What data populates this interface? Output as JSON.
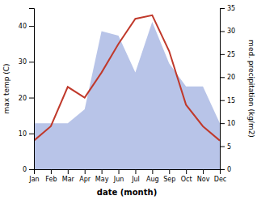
{
  "chart_data": {
    "type": "line",
    "xlabel": "date (month)",
    "ylabel": "max temp (C)",
    "y2label": "med. precipitation (kg/m2)",
    "categories": [
      "Jan",
      "Feb",
      "Mar",
      "Apr",
      "May",
      "Jun",
      "Jul",
      "Aug",
      "Sep",
      "Oct",
      "Nov",
      "Dec"
    ],
    "series": [
      {
        "type": "area",
        "axis": "y2",
        "color": "#b8c4e8",
        "values": [
          10,
          10,
          10,
          13,
          30,
          29,
          21,
          32,
          23,
          18,
          18,
          10
        ]
      },
      {
        "type": "line",
        "color": "#c0392b",
        "values": [
          8,
          12,
          23,
          20,
          27,
          35,
          42,
          43,
          33,
          18,
          12,
          8
        ]
      }
    ],
    "ylim": [
      0,
      45
    ],
    "yticks": [
      0,
      10,
      20,
      30,
      40
    ],
    "y2lim": [
      0,
      35
    ],
    "y2ticks": [
      0,
      5,
      10,
      15,
      20,
      25,
      30,
      35
    ],
    "grid": false
  }
}
